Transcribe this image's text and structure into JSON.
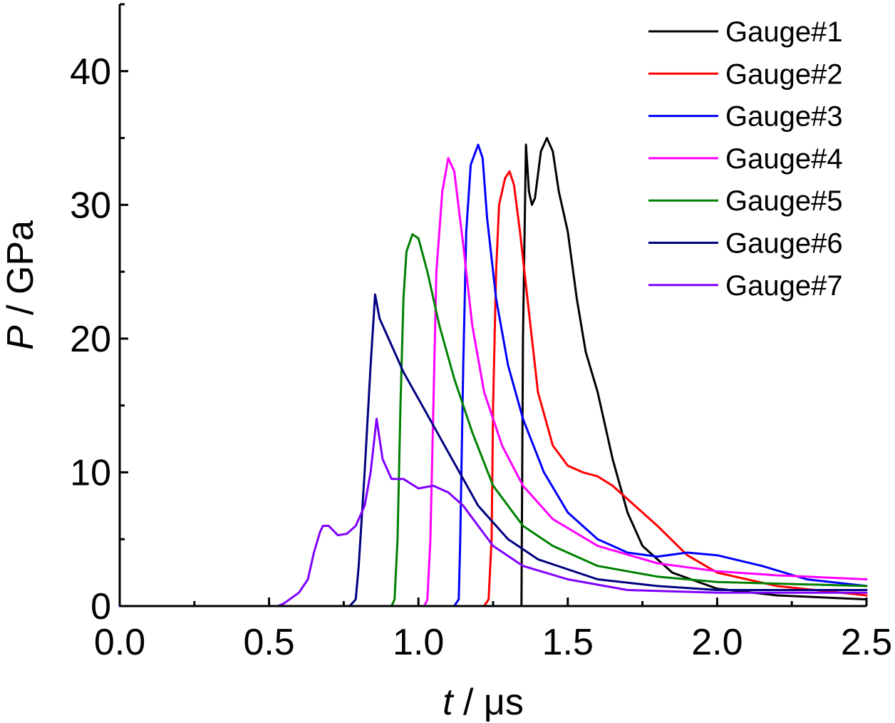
{
  "chart_data": {
    "type": "line",
    "xlabel": {
      "var": "t",
      "unit": " / μs"
    },
    "ylabel": {
      "var": "P",
      "unit": " / GPa"
    },
    "xlim": [
      0,
      2.5
    ],
    "ylim": [
      0,
      45
    ],
    "xticks": [
      0,
      0.5,
      1.0,
      1.5,
      2.0,
      2.5
    ],
    "xtick_labels": [
      "0.0",
      "0.5",
      "1.0",
      "1.5",
      "2.0",
      "2.5"
    ],
    "yticks": [
      0,
      10,
      20,
      30,
      40
    ],
    "ytick_labels": [
      "0",
      "10",
      "20",
      "30",
      "40"
    ],
    "grid": false,
    "legend_position": "top-right",
    "series": [
      {
        "name": "Gauge#1",
        "color": "#000000",
        "points": [
          [
            0,
            0
          ],
          [
            1.33,
            0
          ],
          [
            1.345,
            0
          ],
          [
            1.35,
            20
          ],
          [
            1.36,
            34.5
          ],
          [
            1.37,
            31
          ],
          [
            1.38,
            30
          ],
          [
            1.39,
            30.5
          ],
          [
            1.41,
            34
          ],
          [
            1.43,
            35
          ],
          [
            1.45,
            34
          ],
          [
            1.47,
            31
          ],
          [
            1.5,
            28
          ],
          [
            1.53,
            23
          ],
          [
            1.56,
            19
          ],
          [
            1.6,
            16
          ],
          [
            1.65,
            11
          ],
          [
            1.7,
            7
          ],
          [
            1.75,
            4.5
          ],
          [
            1.85,
            2.5
          ],
          [
            2.0,
            1.3
          ],
          [
            2.2,
            0.8
          ],
          [
            2.5,
            0.5
          ]
        ]
      },
      {
        "name": "Gauge#2",
        "color": "#ff0000",
        "points": [
          [
            0,
            0
          ],
          [
            1.22,
            0
          ],
          [
            1.235,
            0.5
          ],
          [
            1.245,
            5
          ],
          [
            1.25,
            15
          ],
          [
            1.26,
            25
          ],
          [
            1.27,
            30
          ],
          [
            1.29,
            32
          ],
          [
            1.305,
            32.5
          ],
          [
            1.32,
            31.5
          ],
          [
            1.34,
            28
          ],
          [
            1.37,
            22
          ],
          [
            1.4,
            16
          ],
          [
            1.45,
            12
          ],
          [
            1.5,
            10.5
          ],
          [
            1.55,
            10
          ],
          [
            1.6,
            9.7
          ],
          [
            1.65,
            9
          ],
          [
            1.7,
            8
          ],
          [
            1.8,
            6
          ],
          [
            1.9,
            3.8
          ],
          [
            2.0,
            2.5
          ],
          [
            2.2,
            1.5
          ],
          [
            2.5,
            0.8
          ]
        ]
      },
      {
        "name": "Gauge#3",
        "color": "#0000ff",
        "points": [
          [
            0,
            0
          ],
          [
            1.12,
            0
          ],
          [
            1.135,
            0.5
          ],
          [
            1.14,
            5
          ],
          [
            1.15,
            18
          ],
          [
            1.16,
            28
          ],
          [
            1.175,
            33
          ],
          [
            1.2,
            34.5
          ],
          [
            1.215,
            33.5
          ],
          [
            1.23,
            29
          ],
          [
            1.26,
            23
          ],
          [
            1.3,
            18
          ],
          [
            1.35,
            14
          ],
          [
            1.42,
            10
          ],
          [
            1.5,
            7
          ],
          [
            1.6,
            5
          ],
          [
            1.7,
            4
          ],
          [
            1.8,
            3.7
          ],
          [
            1.9,
            4
          ],
          [
            2.0,
            3.8
          ],
          [
            2.15,
            3
          ],
          [
            2.3,
            2
          ],
          [
            2.5,
            1.5
          ]
        ]
      },
      {
        "name": "Gauge#4",
        "color": "#ff00ff",
        "points": [
          [
            0,
            0
          ],
          [
            1.02,
            0
          ],
          [
            1.03,
            0.5
          ],
          [
            1.04,
            5
          ],
          [
            1.05,
            15
          ],
          [
            1.06,
            25
          ],
          [
            1.08,
            31
          ],
          [
            1.1,
            33.5
          ],
          [
            1.12,
            32.5
          ],
          [
            1.15,
            27
          ],
          [
            1.18,
            21
          ],
          [
            1.22,
            16
          ],
          [
            1.28,
            12
          ],
          [
            1.35,
            9
          ],
          [
            1.45,
            6.5
          ],
          [
            1.6,
            4.5
          ],
          [
            1.8,
            3.2
          ],
          [
            2.0,
            2.6
          ],
          [
            2.2,
            2.3
          ],
          [
            2.5,
            2
          ]
        ]
      },
      {
        "name": "Gauge#5",
        "color": "#008000",
        "points": [
          [
            0,
            0
          ],
          [
            0.91,
            0
          ],
          [
            0.92,
            0.5
          ],
          [
            0.93,
            5
          ],
          [
            0.94,
            15
          ],
          [
            0.95,
            23
          ],
          [
            0.96,
            26.5
          ],
          [
            0.98,
            27.8
          ],
          [
            1.0,
            27.5
          ],
          [
            1.03,
            25
          ],
          [
            1.07,
            21
          ],
          [
            1.12,
            17
          ],
          [
            1.18,
            13
          ],
          [
            1.25,
            9
          ],
          [
            1.35,
            6
          ],
          [
            1.45,
            4.5
          ],
          [
            1.6,
            3
          ],
          [
            1.8,
            2.2
          ],
          [
            2.0,
            1.8
          ],
          [
            2.5,
            1.5
          ]
        ]
      },
      {
        "name": "Gauge#6",
        "color": "#000080",
        "points": [
          [
            0,
            0
          ],
          [
            0.77,
            0
          ],
          [
            0.79,
            0.5
          ],
          [
            0.8,
            3
          ],
          [
            0.82,
            10
          ],
          [
            0.84,
            18
          ],
          [
            0.855,
            23.3
          ],
          [
            0.87,
            21.5
          ],
          [
            0.9,
            20
          ],
          [
            0.95,
            17.5
          ],
          [
            1.0,
            15.5
          ],
          [
            1.05,
            13.5
          ],
          [
            1.1,
            11.5
          ],
          [
            1.15,
            9.5
          ],
          [
            1.2,
            7.5
          ],
          [
            1.3,
            5
          ],
          [
            1.4,
            3.5
          ],
          [
            1.6,
            2
          ],
          [
            1.8,
            1.5
          ],
          [
            2.0,
            1.2
          ],
          [
            2.5,
            1.2
          ]
        ]
      },
      {
        "name": "Gauge#7",
        "color": "#8000ff",
        "points": [
          [
            0,
            0
          ],
          [
            0.53,
            0
          ],
          [
            0.55,
            0.2
          ],
          [
            0.6,
            1
          ],
          [
            0.63,
            2
          ],
          [
            0.65,
            4
          ],
          [
            0.67,
            5.5
          ],
          [
            0.68,
            6
          ],
          [
            0.7,
            6
          ],
          [
            0.73,
            5.3
          ],
          [
            0.76,
            5.4
          ],
          [
            0.79,
            6
          ],
          [
            0.82,
            7.5
          ],
          [
            0.84,
            10
          ],
          [
            0.86,
            14
          ],
          [
            0.88,
            11
          ],
          [
            0.91,
            9.5
          ],
          [
            0.95,
            9.5
          ],
          [
            1.0,
            8.8
          ],
          [
            1.05,
            9
          ],
          [
            1.1,
            8.5
          ],
          [
            1.15,
            7.5
          ],
          [
            1.2,
            6
          ],
          [
            1.25,
            4.5
          ],
          [
            1.35,
            3
          ],
          [
            1.5,
            2
          ],
          [
            1.7,
            1.2
          ],
          [
            2.0,
            1
          ],
          [
            2.5,
            1
          ]
        ]
      }
    ]
  }
}
